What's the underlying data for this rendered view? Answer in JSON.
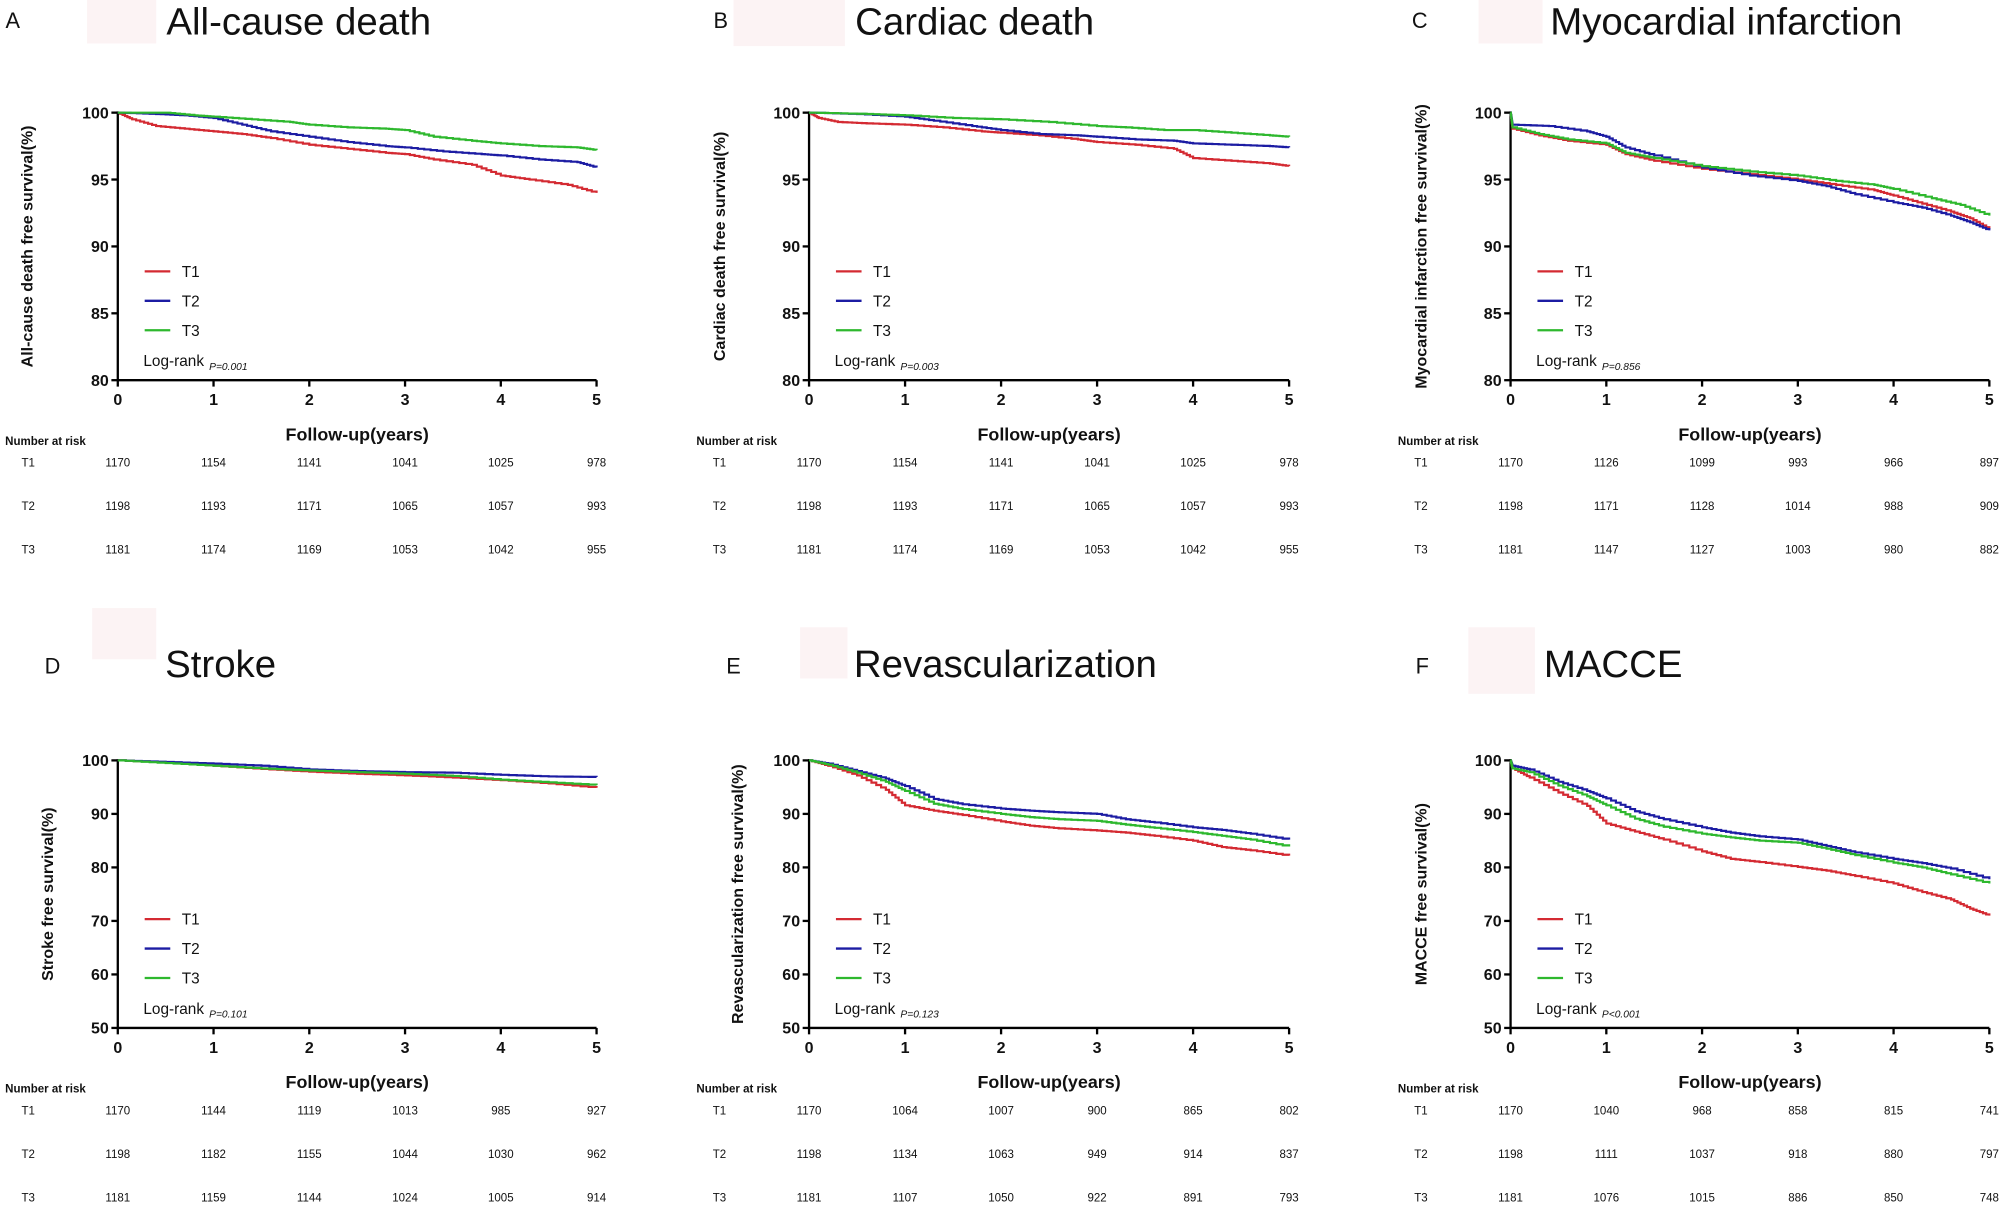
{
  "chart_data": [
    {
      "type": "line",
      "panel": "A",
      "title": "All-cause death",
      "xlabel": "Follow-up(years)",
      "ylabel": "All-cause death free survival(%)",
      "xlim": [
        0,
        5
      ],
      "ylim": [
        80,
        100
      ],
      "xticks": [
        0,
        1,
        2,
        3,
        4,
        5
      ],
      "yticks": [
        100,
        95,
        90,
        85,
        80
      ],
      "logrank": {
        "label": "Log-rank",
        "p": "P=0.001"
      },
      "series": [
        {
          "name": "T1",
          "color": "#d42a32",
          "x": [
            0,
            0.15,
            0.4,
            0.7,
            1,
            1.3,
            1.6,
            2,
            2.4,
            2.8,
            3,
            3.3,
            3.7,
            4,
            4.3,
            4.7,
            5
          ],
          "y": [
            100,
            99.5,
            99.0,
            98.8,
            98.6,
            98.4,
            98.1,
            97.6,
            97.3,
            97.0,
            96.9,
            96.5,
            96.1,
            95.3,
            95.0,
            94.6,
            94.0
          ]
        },
        {
          "name": "T2",
          "color": "#1c1ca3",
          "x": [
            0,
            0.4,
            0.7,
            1,
            1.3,
            1.6,
            2,
            2.4,
            2.8,
            3,
            3.4,
            3.8,
            4,
            4.4,
            4.8,
            5
          ],
          "y": [
            100,
            99.9,
            99.8,
            99.6,
            99.1,
            98.6,
            98.2,
            97.8,
            97.5,
            97.4,
            97.1,
            96.9,
            96.8,
            96.5,
            96.3,
            95.9
          ]
        },
        {
          "name": "T3",
          "color": "#2eb82e",
          "x": [
            0,
            0.5,
            0.8,
            1,
            1.4,
            1.8,
            2,
            2.4,
            2.8,
            3,
            3.3,
            3.7,
            4,
            4.4,
            4.8,
            5
          ],
          "y": [
            100,
            100,
            99.8,
            99.7,
            99.5,
            99.3,
            99.1,
            98.9,
            98.8,
            98.7,
            98.2,
            97.9,
            97.7,
            97.5,
            97.4,
            97.2
          ]
        }
      ],
      "number_at_risk": {
        "label": "Number at risk",
        "rows": [
          {
            "group": "T1",
            "values": [
              1170,
              1154,
              1141,
              1041,
              1025,
              978
            ]
          },
          {
            "group": "T2",
            "values": [
              1198,
              1193,
              1171,
              1065,
              1057,
              993
            ]
          },
          {
            "group": "T3",
            "values": [
              1181,
              1174,
              1169,
              1053,
              1042,
              955
            ]
          }
        ]
      }
    },
    {
      "type": "line",
      "panel": "B",
      "title": "Cardiac death",
      "xlabel": "Follow-up(years)",
      "ylabel": "Cardiac death free survival(%)",
      "xlim": [
        0,
        5
      ],
      "ylim": [
        80,
        100
      ],
      "xticks": [
        0,
        1,
        2,
        3,
        4,
        5
      ],
      "yticks": [
        100,
        95,
        90,
        85,
        80
      ],
      "logrank": {
        "label": "Log-rank",
        "p": "P=0.003"
      },
      "series": [
        {
          "name": "T1",
          "color": "#d42a32",
          "x": [
            0,
            0.1,
            0.3,
            0.6,
            1,
            1.4,
            1.8,
            2,
            2.4,
            2.8,
            3,
            3.4,
            3.8,
            4,
            4.4,
            4.8,
            5
          ],
          "y": [
            100,
            99.6,
            99.3,
            99.2,
            99.1,
            98.9,
            98.6,
            98.5,
            98.3,
            98.0,
            97.8,
            97.6,
            97.3,
            96.6,
            96.4,
            96.2,
            96.0
          ]
        },
        {
          "name": "T2",
          "color": "#1c1ca3",
          "x": [
            0,
            0.5,
            1,
            1.3,
            1.7,
            2,
            2.4,
            2.8,
            3,
            3.4,
            3.8,
            4,
            4.4,
            4.8,
            5
          ],
          "y": [
            100,
            99.9,
            99.7,
            99.4,
            99.0,
            98.7,
            98.4,
            98.3,
            98.2,
            98.0,
            97.9,
            97.7,
            97.6,
            97.5,
            97.4
          ]
        },
        {
          "name": "T3",
          "color": "#2eb82e",
          "x": [
            0,
            0.6,
            1,
            1.5,
            2,
            2.5,
            3,
            3.3,
            3.7,
            4,
            4.4,
            4.8,
            5
          ],
          "y": [
            100,
            99.9,
            99.8,
            99.6,
            99.5,
            99.3,
            99.0,
            98.9,
            98.7,
            98.7,
            98.5,
            98.3,
            98.2
          ]
        }
      ],
      "number_at_risk": {
        "label": "Number at risk",
        "rows": [
          {
            "group": "T1",
            "values": [
              1170,
              1154,
              1141,
              1041,
              1025,
              978
            ]
          },
          {
            "group": "T2",
            "values": [
              1198,
              1193,
              1171,
              1065,
              1057,
              993
            ]
          },
          {
            "group": "T3",
            "values": [
              1181,
              1174,
              1169,
              1053,
              1042,
              955
            ]
          }
        ]
      }
    },
    {
      "type": "line",
      "panel": "C",
      "title": "Myocardial infarction",
      "xlabel": "Follow-up(years)",
      "ylabel": "Myocardial infarction free survival(%)",
      "xlim": [
        0,
        5
      ],
      "ylim": [
        80,
        100
      ],
      "xticks": [
        0,
        1,
        2,
        3,
        4,
        5
      ],
      "yticks": [
        100,
        95,
        90,
        85,
        80
      ],
      "logrank": {
        "label": "Log-rank",
        "p": "P=0.856"
      },
      "series": [
        {
          "name": "T1",
          "color": "#d42a32",
          "x": [
            0,
            0.02,
            0.3,
            0.6,
            1,
            1.2,
            1.5,
            2,
            2.5,
            3,
            3.4,
            3.8,
            4,
            4.3,
            4.6,
            4.8,
            5
          ],
          "y": [
            100,
            98.8,
            98.3,
            97.9,
            97.6,
            96.9,
            96.4,
            95.8,
            95.4,
            95.0,
            94.6,
            94.2,
            93.8,
            93.2,
            92.6,
            92.1,
            91.3
          ]
        },
        {
          "name": "T2",
          "color": "#1c1ca3",
          "x": [
            0,
            0.02,
            0.4,
            0.8,
            1,
            1.2,
            1.5,
            2,
            2.5,
            3,
            3.3,
            3.6,
            4,
            4.3,
            4.6,
            4.8,
            5
          ],
          "y": [
            100,
            99.1,
            99.0,
            98.6,
            98.2,
            97.4,
            96.8,
            95.9,
            95.3,
            94.9,
            94.5,
            93.9,
            93.3,
            92.9,
            92.3,
            91.8,
            91.2
          ]
        },
        {
          "name": "T3",
          "color": "#2eb82e",
          "x": [
            0,
            0.02,
            0.3,
            0.6,
            1,
            1.2,
            1.5,
            2,
            2.5,
            3,
            3.4,
            3.8,
            4,
            4.4,
            4.7,
            5
          ],
          "y": [
            100,
            98.9,
            98.4,
            98.0,
            97.7,
            97.0,
            96.6,
            96.0,
            95.6,
            95.3,
            94.9,
            94.6,
            94.3,
            93.6,
            93.1,
            92.3
          ]
        }
      ],
      "number_at_risk": {
        "label": "Number at risk",
        "rows": [
          {
            "group": "T1",
            "values": [
              1170,
              1126,
              1099,
              993,
              966,
              897
            ]
          },
          {
            "group": "T2",
            "values": [
              1198,
              1171,
              1128,
              1014,
              988,
              909
            ]
          },
          {
            "group": "T3",
            "values": [
              1181,
              1147,
              1127,
              1003,
              980,
              882
            ]
          }
        ]
      }
    },
    {
      "type": "line",
      "panel": "D",
      "title": "Stroke",
      "xlabel": "Follow-up(years)",
      "ylabel": "Stroke free survival(%)",
      "xlim": [
        0,
        5
      ],
      "ylim": [
        50,
        100
      ],
      "xticks": [
        0,
        1,
        2,
        3,
        4,
        5
      ],
      "yticks": [
        100,
        90,
        80,
        70,
        60,
        50
      ],
      "logrank": {
        "label": "Log-rank",
        "p": "P=0.101"
      },
      "series": [
        {
          "name": "T1",
          "color": "#d42a32",
          "x": [
            0,
            0.5,
            1,
            1.5,
            2,
            2.5,
            3,
            3.5,
            4,
            4.5,
            5
          ],
          "y": [
            100,
            99.6,
            99.0,
            98.4,
            97.9,
            97.5,
            97.2,
            96.8,
            96.3,
            95.7,
            94.9
          ]
        },
        {
          "name": "T2",
          "color": "#1c1ca3",
          "x": [
            0,
            0.5,
            1,
            1.5,
            2,
            2.5,
            3,
            3.5,
            4,
            4.5,
            5
          ],
          "y": [
            100,
            99.7,
            99.4,
            99.0,
            98.3,
            98.0,
            97.8,
            97.7,
            97.3,
            97.0,
            96.9
          ]
        },
        {
          "name": "T3",
          "color": "#2eb82e",
          "x": [
            0,
            0.5,
            1,
            1.5,
            2,
            2.5,
            3,
            3.5,
            4,
            4.5,
            5
          ],
          "y": [
            100,
            99.5,
            99.0,
            98.5,
            98.1,
            97.8,
            97.5,
            97.1,
            96.4,
            95.9,
            95.4
          ]
        }
      ],
      "number_at_risk": {
        "label": "Number at risk",
        "rows": [
          {
            "group": "T1",
            "values": [
              1170,
              1144,
              1119,
              1013,
              985,
              927
            ]
          },
          {
            "group": "T2",
            "values": [
              1198,
              1182,
              1155,
              1044,
              1030,
              962
            ]
          },
          {
            "group": "T3",
            "values": [
              1181,
              1159,
              1144,
              1024,
              1005,
              914
            ]
          }
        ]
      }
    },
    {
      "type": "line",
      "panel": "E",
      "title": "Revascularization",
      "xlabel": "Follow-up(years)",
      "ylabel": "Revascularization free survival(%)",
      "xlim": [
        0,
        5
      ],
      "ylim": [
        50,
        100
      ],
      "xticks": [
        0,
        1,
        2,
        3,
        4,
        5
      ],
      "yticks": [
        100,
        90,
        80,
        70,
        60,
        50
      ],
      "logrank": {
        "label": "Log-rank",
        "p": "P=0.123"
      },
      "series": [
        {
          "name": "T1",
          "color": "#d42a32",
          "x": [
            0,
            0.2,
            0.5,
            0.8,
            1,
            1.3,
            1.6,
            2,
            2.3,
            2.6,
            3,
            3.3,
            3.6,
            4,
            4.3,
            4.6,
            5
          ],
          "y": [
            100,
            99.0,
            97.2,
            94.5,
            91.6,
            90.6,
            89.8,
            88.6,
            87.8,
            87.3,
            86.9,
            86.5,
            85.9,
            85.0,
            83.8,
            83.2,
            82.2
          ]
        },
        {
          "name": "T2",
          "color": "#1c1ca3",
          "x": [
            0,
            0.2,
            0.5,
            0.8,
            1,
            1.3,
            1.6,
            2,
            2.3,
            2.6,
            3,
            3.3,
            3.6,
            4,
            4.3,
            4.6,
            5
          ],
          "y": [
            100,
            99.4,
            98.0,
            96.6,
            95.2,
            92.8,
            91.8,
            91.0,
            90.6,
            90.3,
            90.0,
            89.0,
            88.4,
            87.5,
            87.0,
            86.3,
            85.2
          ]
        },
        {
          "name": "T3",
          "color": "#2eb82e",
          "x": [
            0,
            0.2,
            0.5,
            0.8,
            1,
            1.3,
            1.6,
            2,
            2.3,
            2.6,
            3,
            3.3,
            3.6,
            4,
            4.3,
            4.6,
            5
          ],
          "y": [
            100,
            99.2,
            97.7,
            96.0,
            94.3,
            91.9,
            90.9,
            90.0,
            89.4,
            89.0,
            88.7,
            88.0,
            87.4,
            86.6,
            85.9,
            85.2,
            83.9
          ]
        }
      ],
      "number_at_risk": {
        "label": "Number at risk",
        "rows": [
          {
            "group": "T1",
            "values": [
              1170,
              1064,
              1007,
              900,
              865,
              802
            ]
          },
          {
            "group": "T2",
            "values": [
              1198,
              1134,
              1063,
              949,
              914,
              837
            ]
          },
          {
            "group": "T3",
            "values": [
              1181,
              1107,
              1050,
              922,
              891,
              793
            ]
          }
        ]
      }
    },
    {
      "type": "line",
      "panel": "F",
      "title": "MACCE",
      "xlabel": "Follow-up(years)",
      "ylabel": "MACCE free survival(%)",
      "xlim": [
        0,
        5
      ],
      "ylim": [
        50,
        100
      ],
      "xticks": [
        0,
        1,
        2,
        3,
        4,
        5
      ],
      "yticks": [
        100,
        90,
        80,
        70,
        60,
        50
      ],
      "logrank": {
        "label": "Log-rank",
        "p": "P<0.001"
      },
      "series": [
        {
          "name": "T1",
          "color": "#d42a32",
          "x": [
            0,
            0.02,
            0.2,
            0.5,
            0.8,
            1,
            1.3,
            1.6,
            2,
            2.3,
            2.6,
            3,
            3.3,
            3.6,
            4,
            4.3,
            4.6,
            4.8,
            5
          ],
          "y": [
            100,
            98.5,
            96.8,
            94.0,
            91.5,
            88.2,
            86.7,
            85.2,
            83.0,
            81.6,
            81.0,
            80.1,
            79.4,
            78.4,
            77.0,
            75.4,
            74.0,
            72.3,
            71.0
          ]
        },
        {
          "name": "T2",
          "color": "#1c1ca3",
          "x": [
            0,
            0.02,
            0.2,
            0.5,
            0.8,
            1,
            1.3,
            1.6,
            2,
            2.3,
            2.6,
            3,
            3.3,
            3.6,
            4,
            4.3,
            4.6,
            5
          ],
          "y": [
            100,
            99.0,
            98.3,
            96.0,
            94.3,
            92.9,
            90.5,
            89.0,
            87.5,
            86.5,
            85.8,
            85.2,
            84.0,
            82.8,
            81.6,
            80.8,
            79.8,
            77.8
          ]
        },
        {
          "name": "T3",
          "color": "#2eb82e",
          "x": [
            0,
            0.02,
            0.2,
            0.5,
            0.8,
            1,
            1.3,
            1.6,
            2,
            2.3,
            2.6,
            3,
            3.3,
            3.6,
            4,
            4.3,
            4.6,
            5
          ],
          "y": [
            100,
            98.5,
            97.8,
            95.3,
            93.3,
            91.6,
            89.1,
            87.6,
            86.3,
            85.6,
            85.0,
            84.6,
            83.5,
            82.3,
            80.9,
            80.0,
            78.7,
            77.0
          ]
        }
      ],
      "number_at_risk": {
        "label": "Number at risk",
        "rows": [
          {
            "group": "T1",
            "values": [
              1170,
              1040,
              968,
              858,
              815,
              741
            ]
          },
          {
            "group": "T2",
            "values": [
              1198,
              1111,
              1037,
              918,
              880,
              797
            ]
          },
          {
            "group": "T3",
            "values": [
              1181,
              1076,
              1015,
              886,
              850,
              748
            ]
          }
        ]
      }
    }
  ]
}
